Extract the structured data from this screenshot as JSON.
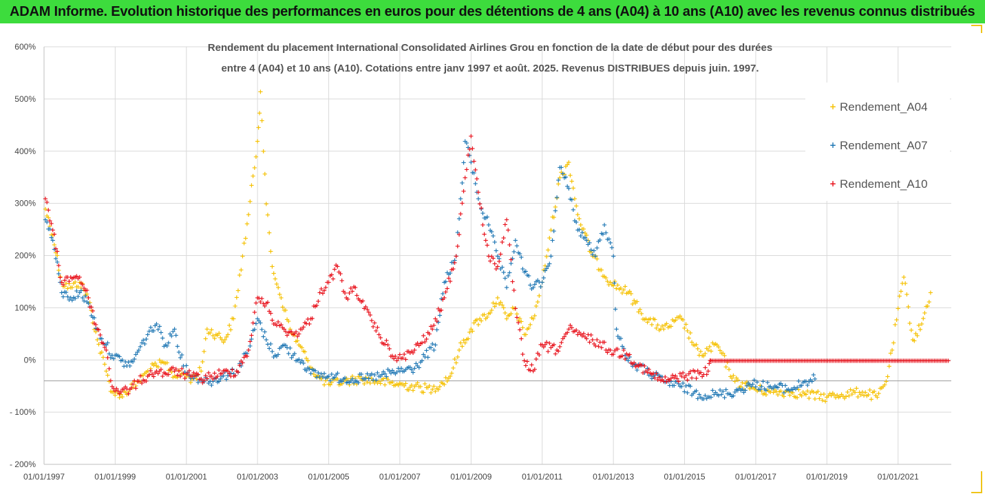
{
  "header": {
    "title": "ADAM Informe. Evolution historique des performances en euros pour des détentions de 4 ans (A04) à 10 ans (A10) avec les revenus connus distribués"
  },
  "chart_data": {
    "type": "scatter",
    "title_line1": "Rendement du placement International Consolidated Airlines Grou en fonction de la date de début pour des durées",
    "title_line2": "entre 4 (A04) et 10 ans (A10). Cotations entre janv 1997 et août. 2025. Revenus DISTRIBUES depuis juin. 1997.",
    "xlim": [
      "1997-01-01",
      "2022-07-01"
    ],
    "ylim": [
      -200,
      600
    ],
    "grid": true,
    "legend_position": "top-right",
    "y_ticks": [
      {
        "value": 600,
        "label": "600%"
      },
      {
        "value": 500,
        "label": "500%"
      },
      {
        "value": 400,
        "label": "400%"
      },
      {
        "value": 300,
        "label": "300%"
      },
      {
        "value": 200,
        "label": "200%"
      },
      {
        "value": 100,
        "label": "100%"
      },
      {
        "value": 0,
        "label": "0%"
      },
      {
        "value": -100,
        "label": "- 100%"
      },
      {
        "value": -200,
        "label": "- 200%"
      }
    ],
    "x_ticks": [
      {
        "value": "1997-01-01",
        "label": "01/01/1997"
      },
      {
        "value": "1999-01-01",
        "label": "01/01/1999"
      },
      {
        "value": "2001-01-01",
        "label": "01/01/2001"
      },
      {
        "value": "2003-01-01",
        "label": "01/01/2003"
      },
      {
        "value": "2005-01-01",
        "label": "01/01/2005"
      },
      {
        "value": "2007-01-01",
        "label": "01/01/2007"
      },
      {
        "value": "2009-01-01",
        "label": "01/01/2009"
      },
      {
        "value": "2011-01-01",
        "label": "01/01/2011"
      },
      {
        "value": "2013-01-01",
        "label": "01/01/2013"
      },
      {
        "value": "2015-01-01",
        "label": "01/01/2015"
      },
      {
        "value": "2017-01-01",
        "label": "01/01/2017"
      },
      {
        "value": "2019-01-01",
        "label": "01/01/2019"
      },
      {
        "value": "2021-01-01",
        "label": "01/01/2021"
      }
    ],
    "series": [
      {
        "name": "Rendement_A04",
        "color": "#f5c000",
        "points": [
          [
            "1997-01-15",
            290
          ],
          [
            "1997-04-01",
            240
          ],
          [
            "1997-07-01",
            150
          ],
          [
            "1997-10-01",
            140
          ],
          [
            "1998-01-01",
            150
          ],
          [
            "1998-04-01",
            120
          ],
          [
            "1998-07-01",
            40
          ],
          [
            "1998-10-01",
            -20
          ],
          [
            "1998-12-01",
            -60
          ],
          [
            "1999-03-01",
            -65
          ],
          [
            "1999-06-01",
            -55
          ],
          [
            "1999-09-01",
            -40
          ],
          [
            "1999-12-01",
            -20
          ],
          [
            "2000-03-01",
            -10
          ],
          [
            "2000-06-01",
            -5
          ],
          [
            "2000-09-01",
            -30
          ],
          [
            "2000-12-01",
            -25
          ],
          [
            "2001-03-01",
            -35
          ],
          [
            "2001-06-01",
            -20
          ],
          [
            "2001-08-01",
            60
          ],
          [
            "2001-11-01",
            50
          ],
          [
            "2002-02-01",
            40
          ],
          [
            "2002-05-01",
            80
          ],
          [
            "2002-08-01",
            200
          ],
          [
            "2002-10-01",
            280
          ],
          [
            "2003-01-01",
            420
          ],
          [
            "2003-02-01",
            515
          ],
          [
            "2003-04-01",
            300
          ],
          [
            "2003-06-01",
            180
          ],
          [
            "2003-09-01",
            120
          ],
          [
            "2003-12-01",
            60
          ],
          [
            "2004-03-01",
            30
          ],
          [
            "2004-06-01",
            0
          ],
          [
            "2004-09-01",
            -30
          ],
          [
            "2005-01-01",
            -45
          ],
          [
            "2005-06-01",
            -40
          ],
          [
            "2005-12-01",
            -35
          ],
          [
            "2006-06-01",
            -40
          ],
          [
            "2006-12-01",
            -45
          ],
          [
            "2007-06-01",
            -50
          ],
          [
            "2007-12-01",
            -55
          ],
          [
            "2008-06-01",
            -30
          ],
          [
            "2008-09-01",
            20
          ],
          [
            "2009-01-01",
            60
          ],
          [
            "2009-04-01",
            80
          ],
          [
            "2009-07-01",
            90
          ],
          [
            "2009-10-01",
            120
          ],
          [
            "2010-01-01",
            80
          ],
          [
            "2010-04-01",
            100
          ],
          [
            "2010-07-01",
            50
          ],
          [
            "2010-10-01",
            80
          ],
          [
            "2011-01-01",
            150
          ],
          [
            "2011-04-01",
            250
          ],
          [
            "2011-07-01",
            350
          ],
          [
            "2011-10-01",
            380
          ],
          [
            "2012-01-01",
            280
          ],
          [
            "2012-06-01",
            200
          ],
          [
            "2012-12-01",
            150
          ],
          [
            "2013-06-01",
            130
          ],
          [
            "2013-12-01",
            80
          ],
          [
            "2014-06-01",
            60
          ],
          [
            "2014-12-01",
            80
          ],
          [
            "2015-06-01",
            10
          ],
          [
            "2015-12-01",
            30
          ],
          [
            "2016-06-01",
            -40
          ],
          [
            "2017-01-01",
            -55
          ],
          [
            "2017-06-01",
            -60
          ],
          [
            "2018-01-01",
            -60
          ],
          [
            "2018-06-01",
            -65
          ],
          [
            "2019-01-01",
            -70
          ],
          [
            "2019-06-01",
            -65
          ],
          [
            "2020-01-01",
            -60
          ],
          [
            "2020-06-01",
            -70
          ],
          [
            "2020-09-01",
            -40
          ],
          [
            "2020-11-01",
            20
          ],
          [
            "2021-01-01",
            100
          ],
          [
            "2021-03-01",
            160
          ],
          [
            "2021-06-01",
            40
          ],
          [
            "2021-09-01",
            70
          ],
          [
            "2021-12-01",
            130
          ]
        ]
      },
      {
        "name": "Rendement_A07",
        "color": "#1f77b4",
        "points": [
          [
            "1997-01-15",
            270
          ],
          [
            "1997-04-01",
            230
          ],
          [
            "1997-07-01",
            130
          ],
          [
            "1997-10-01",
            120
          ],
          [
            "1998-01-01",
            130
          ],
          [
            "1998-04-01",
            110
          ],
          [
            "1998-07-01",
            60
          ],
          [
            "1998-10-01",
            30
          ],
          [
            "1998-12-01",
            10
          ],
          [
            "1999-03-01",
            0
          ],
          [
            "1999-06-01",
            -10
          ],
          [
            "1999-09-01",
            20
          ],
          [
            "1999-12-01",
            50
          ],
          [
            "2000-03-01",
            70
          ],
          [
            "2000-06-01",
            30
          ],
          [
            "2000-09-01",
            60
          ],
          [
            "2000-12-01",
            -10
          ],
          [
            "2001-03-01",
            -30
          ],
          [
            "2001-06-01",
            -35
          ],
          [
            "2001-09-01",
            -40
          ],
          [
            "2002-01-01",
            -30
          ],
          [
            "2002-06-01",
            -20
          ],
          [
            "2002-10-01",
            20
          ],
          [
            "2003-01-01",
            80
          ],
          [
            "2003-04-01",
            40
          ],
          [
            "2003-07-01",
            10
          ],
          [
            "2003-10-01",
            30
          ],
          [
            "2004-01-01",
            10
          ],
          [
            "2004-04-01",
            0
          ],
          [
            "2004-07-01",
            -25
          ],
          [
            "2005-01-01",
            -30
          ],
          [
            "2005-06-01",
            -35
          ],
          [
            "2006-01-01",
            -35
          ],
          [
            "2006-06-01",
            -30
          ],
          [
            "2007-01-01",
            -20
          ],
          [
            "2007-06-01",
            -15
          ],
          [
            "2008-01-01",
            30
          ],
          [
            "2008-04-01",
            150
          ],
          [
            "2008-08-01",
            200
          ],
          [
            "2008-11-01",
            420
          ],
          [
            "2009-01-01",
            380
          ],
          [
            "2009-04-01",
            300
          ],
          [
            "2009-07-01",
            260
          ],
          [
            "2009-10-01",
            200
          ],
          [
            "2010-01-01",
            140
          ],
          [
            "2010-04-01",
            230
          ],
          [
            "2010-07-01",
            170
          ],
          [
            "2010-10-01",
            140
          ],
          [
            "2011-01-01",
            150
          ],
          [
            "2011-04-01",
            200
          ],
          [
            "2011-07-01",
            370
          ],
          [
            "2011-10-01",
            330
          ],
          [
            "2012-01-01",
            250
          ],
          [
            "2012-04-01",
            230
          ],
          [
            "2012-07-01",
            200
          ],
          [
            "2012-10-01",
            260
          ],
          [
            "2013-01-01",
            200
          ],
          [
            "2013-02-01",
            60
          ],
          [
            "2013-06-01",
            0
          ],
          [
            "2013-12-01",
            -20
          ],
          [
            "2014-06-01",
            -40
          ],
          [
            "2014-12-01",
            -50
          ],
          [
            "2015-06-01",
            -65
          ],
          [
            "2015-12-01",
            -65
          ],
          [
            "2016-06-01",
            -60
          ],
          [
            "2016-12-01",
            -45
          ],
          [
            "2017-06-01",
            -50
          ],
          [
            "2018-01-01",
            -55
          ],
          [
            "2018-06-01",
            -40
          ],
          [
            "2018-09-01",
            -35
          ]
        ]
      },
      {
        "name": "Rendement_A10",
        "color": "#e8101a",
        "points": [
          [
            "1997-01-15",
            310
          ],
          [
            "1997-04-01",
            250
          ],
          [
            "1997-07-01",
            150
          ],
          [
            "1997-10-01",
            160
          ],
          [
            "1998-01-01",
            160
          ],
          [
            "1998-04-01",
            120
          ],
          [
            "1998-07-01",
            60
          ],
          [
            "1998-10-01",
            20
          ],
          [
            "1998-12-01",
            -50
          ],
          [
            "1999-03-01",
            -60
          ],
          [
            "1999-06-01",
            -55
          ],
          [
            "1999-09-01",
            -40
          ],
          [
            "1999-12-01",
            -30
          ],
          [
            "2000-03-01",
            -20
          ],
          [
            "2000-06-01",
            -25
          ],
          [
            "2000-09-01",
            -20
          ],
          [
            "2000-12-01",
            -25
          ],
          [
            "2001-03-01",
            -30
          ],
          [
            "2001-06-01",
            -35
          ],
          [
            "2001-09-01",
            -30
          ],
          [
            "2002-01-01",
            -25
          ],
          [
            "2002-06-01",
            -20
          ],
          [
            "2002-10-01",
            20
          ],
          [
            "2003-01-01",
            120
          ],
          [
            "2003-04-01",
            110
          ],
          [
            "2003-07-01",
            70
          ],
          [
            "2003-10-01",
            60
          ],
          [
            "2004-01-01",
            50
          ],
          [
            "2004-04-01",
            60
          ],
          [
            "2004-07-01",
            80
          ],
          [
            "2004-10-01",
            130
          ],
          [
            "2005-01-01",
            150
          ],
          [
            "2005-04-01",
            180
          ],
          [
            "2005-07-01",
            120
          ],
          [
            "2005-10-01",
            140
          ],
          [
            "2006-01-01",
            100
          ],
          [
            "2006-06-01",
            50
          ],
          [
            "2006-12-01",
            0
          ],
          [
            "2007-06-01",
            20
          ],
          [
            "2007-12-01",
            60
          ],
          [
            "2008-04-01",
            120
          ],
          [
            "2008-08-01",
            200
          ],
          [
            "2008-11-01",
            350
          ],
          [
            "2009-01-01",
            430
          ],
          [
            "2009-04-01",
            300
          ],
          [
            "2009-07-01",
            200
          ],
          [
            "2009-10-01",
            180
          ],
          [
            "2010-01-01",
            270
          ],
          [
            "2010-04-01",
            100
          ],
          [
            "2010-07-01",
            0
          ],
          [
            "2010-10-01",
            -20
          ],
          [
            "2011-01-01",
            30
          ],
          [
            "2011-06-01",
            20
          ],
          [
            "2011-10-01",
            60
          ],
          [
            "2012-01-01",
            50
          ],
          [
            "2012-06-01",
            40
          ],
          [
            "2012-12-01",
            20
          ],
          [
            "2013-06-01",
            10
          ],
          [
            "2013-12-01",
            -20
          ],
          [
            "2014-06-01",
            -40
          ],
          [
            "2014-12-01",
            -30
          ],
          [
            "2015-06-01",
            -25
          ],
          [
            "2015-09-01",
            -20
          ],
          [
            "2015-10-01",
            0
          ],
          [
            "2016-06-01",
            0
          ],
          [
            "2017-06-01",
            0
          ],
          [
            "2018-06-01",
            0
          ],
          [
            "2019-06-01",
            0
          ],
          [
            "2020-06-01",
            0
          ],
          [
            "2021-06-01",
            0
          ],
          [
            "2022-06-01",
            0
          ]
        ]
      }
    ]
  }
}
